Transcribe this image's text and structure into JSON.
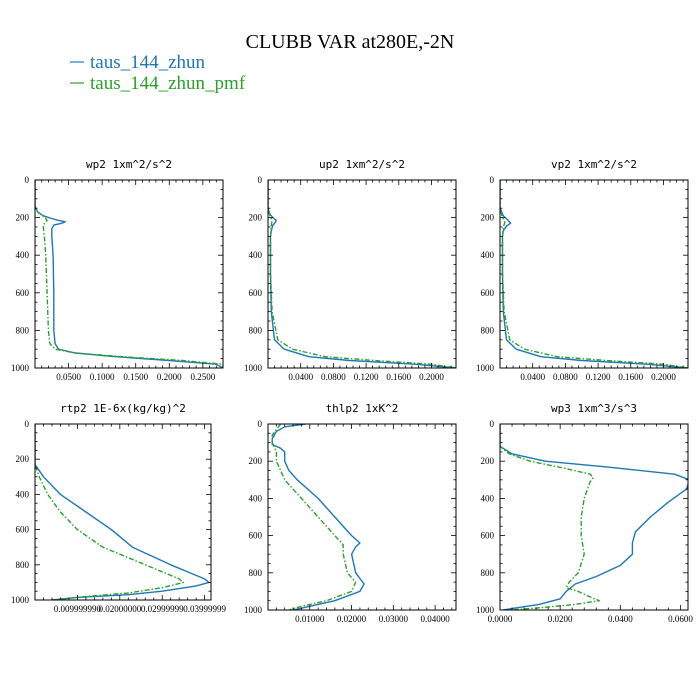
{
  "figure": {
    "title": "CLUBB VAR at280E,-2N",
    "legend": [
      {
        "label": "taus_144_zhun",
        "color": "#1f77b4",
        "dash": "solid"
      },
      {
        "label": "taus_144_zhun_pmf",
        "color": "#2ca02c",
        "dash": "dashdot"
      }
    ]
  },
  "chart_data": [
    {
      "type": "line",
      "title": "wp2  1xm^2/s^2",
      "xlim": [
        0,
        0.28
      ],
      "ylim": [
        1000,
        0
      ],
      "y_inverted": true,
      "xticks": [
        0.05,
        0.1,
        0.15,
        0.2,
        0.25
      ],
      "xtick_labels": [
        "0.0500",
        "0.1000",
        "0.1500",
        "0.2000",
        "0.2500"
      ],
      "yticks": [
        0,
        200,
        400,
        600,
        800,
        1000
      ],
      "ytick_labels": [
        "0",
        "200",
        "400",
        "600",
        "800",
        "1000"
      ],
      "series": [
        {
          "name": "taus_144_zhun",
          "y": [
            0,
            140,
            170,
            190,
            205,
            215,
            222,
            230,
            240,
            260,
            300,
            400,
            600,
            800,
            870,
            900,
            920,
            940,
            960,
            980,
            1000
          ],
          "x": [
            0,
            0,
            0.004,
            0.012,
            0.025,
            0.035,
            0.045,
            0.04,
            0.028,
            0.025,
            0.025,
            0.027,
            0.028,
            0.028,
            0.03,
            0.035,
            0.06,
            0.12,
            0.2,
            0.27,
            0.28
          ]
        },
        {
          "name": "taus_144_zhun_pmf",
          "y": [
            0,
            140,
            170,
            200,
            215,
            240,
            300,
            400,
            600,
            800,
            870,
            900,
            920,
            940,
            960,
            980,
            1000
          ],
          "x": [
            0,
            0,
            0.004,
            0.015,
            0.018,
            0.012,
            0.014,
            0.016,
            0.018,
            0.02,
            0.022,
            0.03,
            0.06,
            0.13,
            0.22,
            0.28,
            0.28
          ]
        }
      ]
    },
    {
      "type": "line",
      "title": "up2  1xm^2/s^2",
      "xlim": [
        0,
        0.23
      ],
      "ylim": [
        1000,
        0
      ],
      "y_inverted": true,
      "xticks": [
        0.04,
        0.08,
        0.12,
        0.16,
        0.2
      ],
      "xtick_labels": [
        "0.0400",
        "0.0800",
        "0.1200",
        "0.1600",
        "0.2000"
      ],
      "yticks": [
        0,
        200,
        400,
        600,
        800,
        1000
      ],
      "ytick_labels": [
        "0",
        "200",
        "400",
        "600",
        "800",
        "1000"
      ],
      "series": [
        {
          "name": "taus_144_zhun",
          "y": [
            0,
            150,
            180,
            200,
            215,
            225,
            240,
            270,
            300,
            500,
            700,
            850,
            900,
            940,
            960,
            980,
            1000
          ],
          "x": [
            0,
            0,
            0.002,
            0.006,
            0.01,
            0.009,
            0.006,
            0.004,
            0.003,
            0.003,
            0.004,
            0.008,
            0.02,
            0.05,
            0.1,
            0.18,
            0.23
          ]
        },
        {
          "name": "taus_144_zhun_pmf",
          "y": [
            0,
            150,
            200,
            215,
            240,
            300,
            500,
            700,
            850,
            900,
            940,
            960,
            980,
            1000
          ],
          "x": [
            0,
            0,
            0.003,
            0.005,
            0.004,
            0.003,
            0.003,
            0.005,
            0.012,
            0.03,
            0.07,
            0.13,
            0.2,
            0.23
          ]
        }
      ]
    },
    {
      "type": "line",
      "title": "vp2  1xm^2/s^2",
      "xlim": [
        0,
        0.23
      ],
      "ylim": [
        1000,
        0
      ],
      "y_inverted": true,
      "xticks": [
        0.04,
        0.08,
        0.12,
        0.16,
        0.2
      ],
      "xtick_labels": [
        "0.0400",
        "0.0800",
        "0.1200",
        "0.1600",
        "0.2000"
      ],
      "yticks": [
        0,
        200,
        400,
        600,
        800,
        1000
      ],
      "ytick_labels": [
        "0",
        "200",
        "400",
        "600",
        "800",
        "1000"
      ],
      "series": [
        {
          "name": "taus_144_zhun",
          "y": [
            0,
            150,
            190,
            215,
            230,
            245,
            270,
            300,
            500,
            700,
            850,
            900,
            940,
            960,
            980,
            1000
          ],
          "x": [
            0,
            0,
            0.004,
            0.01,
            0.013,
            0.008,
            0.004,
            0.003,
            0.003,
            0.004,
            0.008,
            0.02,
            0.05,
            0.1,
            0.18,
            0.23
          ]
        },
        {
          "name": "taus_144_zhun_pmf",
          "y": [
            0,
            150,
            200,
            225,
            250,
            300,
            500,
            700,
            850,
            900,
            940,
            960,
            980,
            1000
          ],
          "x": [
            0,
            0,
            0.003,
            0.006,
            0.004,
            0.003,
            0.003,
            0.005,
            0.012,
            0.03,
            0.07,
            0.13,
            0.2,
            0.23
          ]
        }
      ]
    },
    {
      "type": "line",
      "title": "rtp2  1E-6x(kg/kg)^2",
      "xlim": [
        0,
        0.0415
      ],
      "ylim": [
        1000,
        0
      ],
      "y_inverted": true,
      "xticks": [
        0.01,
        0.02,
        0.03,
        0.04
      ],
      "xtick_labels": [
        "0.009999990",
        "0.02000000",
        "0.02999999",
        "0.03999999"
      ],
      "yticks": [
        0,
        200,
        400,
        600,
        800,
        1000
      ],
      "ytick_labels": [
        "0",
        "200",
        "400",
        "600",
        "800",
        "1000"
      ],
      "series": [
        {
          "name": "taus_144_zhun",
          "y": [
            0,
            230,
            300,
            400,
            500,
            600,
            700,
            800,
            850,
            880,
            900,
            920,
            950,
            970,
            985,
            1000
          ],
          "x": [
            0,
            0,
            0.002,
            0.006,
            0.012,
            0.018,
            0.023,
            0.032,
            0.037,
            0.04,
            0.041,
            0.038,
            0.03,
            0.022,
            0.01,
            0.004
          ]
        },
        {
          "name": "taus_144_zhun_pmf",
          "y": [
            0,
            230,
            300,
            400,
            500,
            600,
            700,
            800,
            850,
            880,
            900,
            930,
            960,
            980,
            1000
          ],
          "x": [
            0,
            0,
            0.001,
            0.003,
            0.006,
            0.01,
            0.016,
            0.026,
            0.031,
            0.034,
            0.035,
            0.03,
            0.022,
            0.012,
            0.004
          ]
        }
      ]
    },
    {
      "type": "line",
      "title": "thlp2  1xK^2",
      "xlim": [
        0,
        0.045
      ],
      "ylim": [
        1000,
        0
      ],
      "y_inverted": true,
      "xticks": [
        0.01,
        0.02,
        0.03,
        0.04
      ],
      "xtick_labels": [
        "0.01000",
        "0.02000",
        "0.03000",
        "0.04000"
      ],
      "yticks": [
        0,
        200,
        400,
        600,
        800,
        1000
      ],
      "ytick_labels": [
        "0",
        "200",
        "400",
        "600",
        "800",
        "1000"
      ],
      "series": [
        {
          "name": "taus_144_zhun",
          "y": [
            0,
            15,
            40,
            80,
            110,
            130,
            150,
            200,
            250,
            300,
            400,
            500,
            600,
            640,
            660,
            700,
            800,
            860,
            900,
            950,
            980,
            1000
          ],
          "x": [
            0.009,
            0.004,
            0.002,
            0.001,
            0.001,
            0.003,
            0.004,
            0.004,
            0.005,
            0.007,
            0.012,
            0.016,
            0.02,
            0.022,
            0.021,
            0.02,
            0.021,
            0.023,
            0.022,
            0.016,
            0.01,
            0.006
          ]
        },
        {
          "name": "taus_144_zhun_pmf",
          "y": [
            0,
            30,
            60,
            100,
            150,
            200,
            300,
            400,
            500,
            600,
            650,
            700,
            800,
            850,
            900,
            950,
            980,
            1000
          ],
          "x": [
            0.003,
            0.002,
            0.001,
            0.001,
            0.002,
            0.002,
            0.004,
            0.008,
            0.012,
            0.016,
            0.018,
            0.018,
            0.019,
            0.021,
            0.02,
            0.014,
            0.008,
            0.005
          ]
        }
      ]
    },
    {
      "type": "line",
      "title": "wp3  1xm^3/s^3",
      "xlim": [
        0,
        0.0625
      ],
      "ylim": [
        1000,
        0
      ],
      "y_inverted": true,
      "xticks": [
        0,
        0.02,
        0.04,
        0.06
      ],
      "xtick_labels": [
        "0.0000",
        "0.0200",
        "0.0400",
        "0.0600"
      ],
      "yticks": [
        0,
        200,
        400,
        600,
        800,
        1000
      ],
      "ytick_labels": [
        "0",
        "200",
        "400",
        "600",
        "800",
        "1000"
      ],
      "series": [
        {
          "name": "taus_144_zhun",
          "y": [
            0,
            120,
            160,
            200,
            230,
            270,
            300,
            350,
            420,
            500,
            580,
            640,
            700,
            760,
            820,
            860,
            900,
            940,
            970,
            990,
            1000
          ],
          "x": [
            0,
            0,
            0.004,
            0.015,
            0.035,
            0.058,
            0.063,
            0.062,
            0.056,
            0.05,
            0.045,
            0.044,
            0.044,
            0.04,
            0.032,
            0.025,
            0.022,
            0.02,
            0.013,
            0.005,
            0.001
          ]
        },
        {
          "name": "taus_144_zhun_pmf",
          "y": [
            0,
            120,
            160,
            200,
            240,
            270,
            290,
            310,
            400,
            500,
            600,
            700,
            800,
            850,
            880,
            900,
            930,
            950,
            970,
            990,
            1000
          ],
          "x": [
            0,
            0,
            0.003,
            0.01,
            0.022,
            0.03,
            0.031,
            0.03,
            0.028,
            0.027,
            0.027,
            0.028,
            0.026,
            0.023,
            0.022,
            0.026,
            0.03,
            0.033,
            0.025,
            0.012,
            0.003
          ]
        }
      ]
    }
  ]
}
